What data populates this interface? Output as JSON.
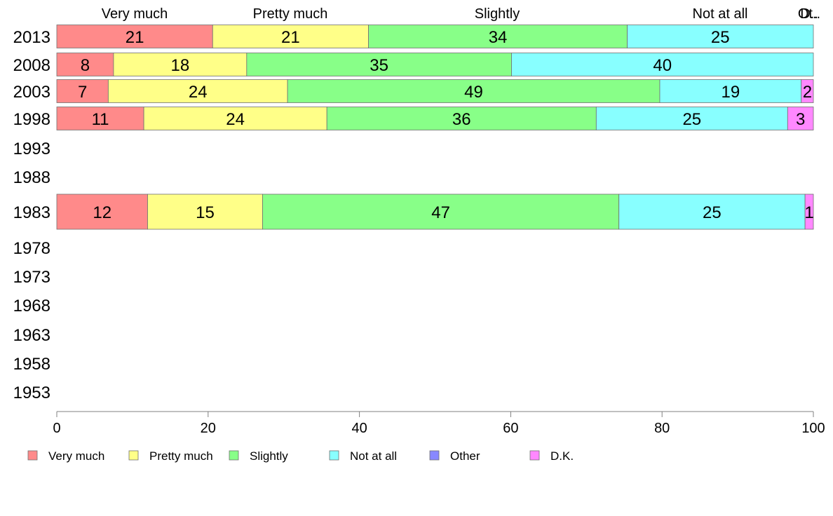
{
  "chart_data": {
    "type": "bar",
    "orientation": "horizontal",
    "stacked": true,
    "categories": [
      "2013",
      "2008",
      "2003",
      "1998",
      "1993",
      "1988",
      "1983",
      "1978",
      "1973",
      "1968",
      "1963",
      "1958",
      "1953"
    ],
    "series": [
      {
        "name": "Very much",
        "color": "#ff8a8a",
        "values": [
          20.6,
          7.5,
          6.8,
          11.5,
          null,
          null,
          12.0,
          null,
          null,
          null,
          null,
          null,
          null
        ],
        "labels": [
          "21",
          "8",
          "7",
          "11",
          "",
          "",
          "12",
          "",
          "",
          "",
          "",
          "",
          ""
        ]
      },
      {
        "name": "Pretty much",
        "color": "#ffff88",
        "values": [
          20.6,
          17.6,
          23.7,
          24.2,
          null,
          null,
          15.2,
          null,
          null,
          null,
          null,
          null,
          null
        ],
        "labels": [
          "21",
          "18",
          "24",
          "24",
          "",
          "",
          "15",
          "",
          "",
          "",
          "",
          "",
          ""
        ]
      },
      {
        "name": "Slightly",
        "color": "#88ff88",
        "values": [
          34.2,
          35.0,
          49.2,
          35.6,
          null,
          null,
          47.1,
          null,
          null,
          null,
          null,
          null,
          null
        ],
        "labels": [
          "34",
          "35",
          "49",
          "36",
          "",
          "",
          "47",
          "",
          "",
          "",
          "",
          "",
          ""
        ]
      },
      {
        "name": "Not at all",
        "color": "#88ffff",
        "values": [
          24.6,
          39.9,
          18.7,
          25.3,
          null,
          null,
          24.6,
          null,
          null,
          null,
          null,
          null,
          null
        ],
        "labels": [
          "25",
          "40",
          "19",
          "25",
          "",
          "",
          "25",
          "",
          "",
          "",
          "",
          "",
          ""
        ]
      },
      {
        "name": "Other",
        "color": "#8888ff",
        "values": [
          0,
          0,
          0,
          0,
          null,
          null,
          0,
          null,
          null,
          null,
          null,
          null,
          null
        ],
        "labels": [
          "",
          "",
          "",
          "",
          "",
          "",
          "",
          "",
          "",
          "",
          "",
          "",
          ""
        ]
      },
      {
        "name": "D.K.",
        "color": "#ff88ff",
        "values": [
          0,
          0,
          1.6,
          3.4,
          null,
          null,
          1.1,
          null,
          null,
          null,
          null,
          null,
          null
        ],
        "labels": [
          "",
          "",
          "2",
          "3",
          "",
          "",
          "1",
          "",
          "",
          "",
          "",
          "",
          ""
        ]
      }
    ],
    "top_labels": [
      "Very much",
      "Pretty much",
      "Slightly",
      "Not at all",
      "Ot..",
      "D.."
    ],
    "highlighted_category": "1983",
    "xlim": [
      0,
      100
    ],
    "xticks": [
      "0",
      "20",
      "40",
      "60",
      "80",
      "100"
    ],
    "grid": false,
    "legend_position": "bottom"
  }
}
